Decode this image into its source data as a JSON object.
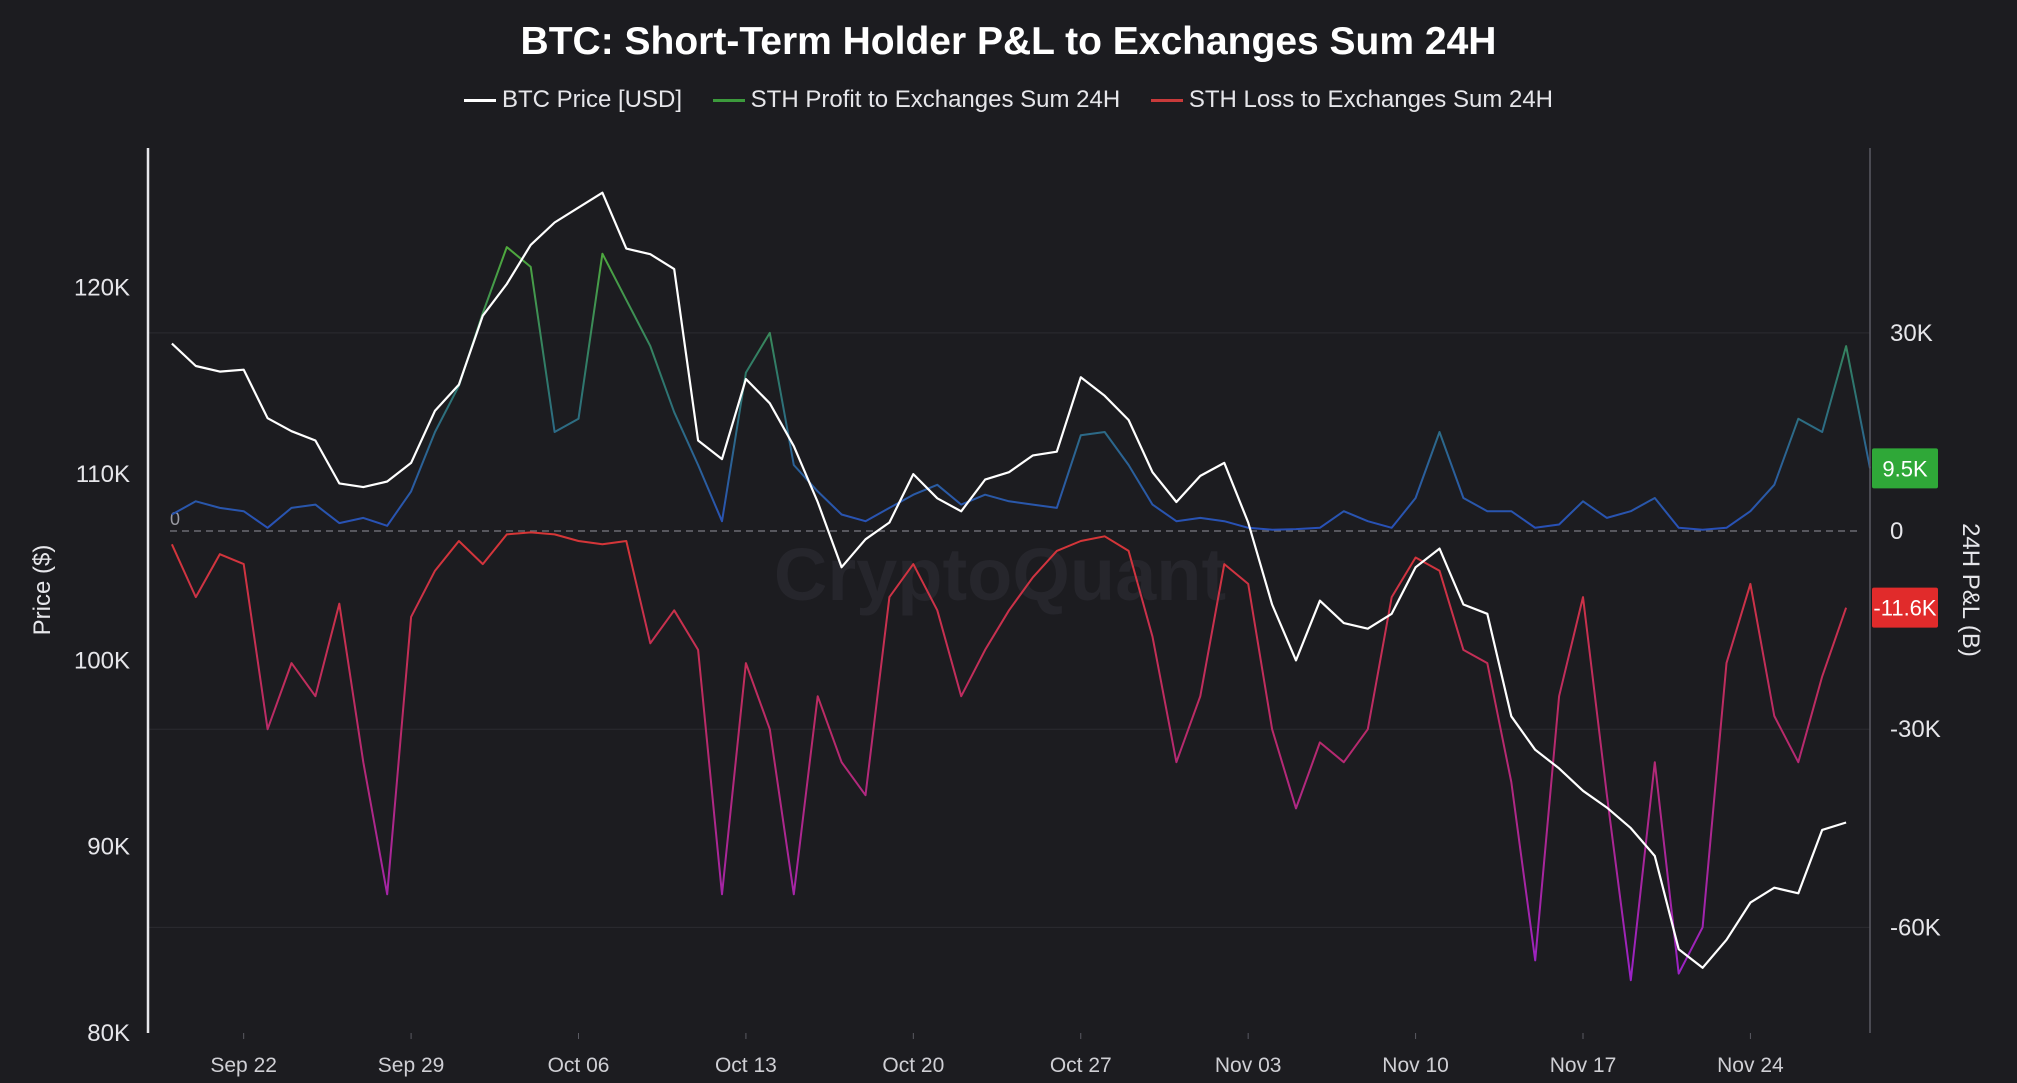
{
  "chart_data": {
    "type": "line",
    "title": "BTC: Short-Term Holder P&L to Exchanges Sum 24H",
    "watermark": "CryptoQuant",
    "ylabel_left": "Price ($)",
    "ylabel_right": "24H P&L (B)",
    "left_axis": {
      "ylim": [
        80000,
        127500
      ],
      "ticks": [
        {
          "v": 80000,
          "label": "80K"
        },
        {
          "v": 90000,
          "label": "90K"
        },
        {
          "v": 100000,
          "label": "100K"
        },
        {
          "v": 110000,
          "label": "110K"
        },
        {
          "v": 120000,
          "label": "120K"
        }
      ]
    },
    "right_axis": {
      "ylim": [
        -76000,
        58000
      ],
      "ticks": [
        {
          "v": 30000,
          "label": "30K"
        },
        {
          "v": 0,
          "label": "0"
        },
        {
          "v": -30000,
          "label": "-30K"
        },
        {
          "v": -60000,
          "label": "-60K"
        }
      ]
    },
    "zero_label": "0",
    "x_axis": {
      "start": "2025-09-18",
      "end": "2025-11-29",
      "ticks": [
        {
          "d": "2025-09-22",
          "label": "Sep 22"
        },
        {
          "d": "2025-09-29",
          "label": "Sep 29"
        },
        {
          "d": "2025-10-06",
          "label": "Oct 06"
        },
        {
          "d": "2025-10-13",
          "label": "Oct 13"
        },
        {
          "d": "2025-10-20",
          "label": "Oct 20"
        },
        {
          "d": "2025-10-27",
          "label": "Oct 27"
        },
        {
          "d": "2025-11-03",
          "label": "Nov 03"
        },
        {
          "d": "2025-11-10",
          "label": "Nov 10"
        },
        {
          "d": "2025-11-17",
          "label": "Nov 17"
        },
        {
          "d": "2025-11-24",
          "label": "Nov 24"
        }
      ]
    },
    "grid": true,
    "legend_position": "top-center",
    "series": [
      {
        "name": "BTC Price [USD]",
        "axis": "left",
        "color": "#ffffff",
        "points": [
          [
            "2025-09-19",
            117000
          ],
          [
            "2025-09-20",
            115800
          ],
          [
            "2025-09-21",
            115500
          ],
          [
            "2025-09-22",
            115600
          ],
          [
            "2025-09-23",
            113000
          ],
          [
            "2025-09-24",
            112300
          ],
          [
            "2025-09-25",
            111800
          ],
          [
            "2025-09-26",
            109500
          ],
          [
            "2025-09-27",
            109300
          ],
          [
            "2025-09-28",
            109600
          ],
          [
            "2025-09-29",
            110600
          ],
          [
            "2025-09-30",
            113400
          ],
          [
            "2025-10-01",
            114800
          ],
          [
            "2025-10-02",
            118500
          ],
          [
            "2025-10-03",
            120200
          ],
          [
            "2025-10-04",
            122300
          ],
          [
            "2025-10-05",
            123500
          ],
          [
            "2025-10-06",
            124300
          ],
          [
            "2025-10-07",
            125100
          ],
          [
            "2025-10-08",
            122100
          ],
          [
            "2025-10-09",
            121800
          ],
          [
            "2025-10-10",
            121000
          ],
          [
            "2025-10-11",
            111800
          ],
          [
            "2025-10-12",
            110800
          ],
          [
            "2025-10-13",
            115100
          ],
          [
            "2025-10-14",
            113800
          ],
          [
            "2025-10-15",
            111500
          ],
          [
            "2025-10-16",
            108500
          ],
          [
            "2025-10-17",
            105000
          ],
          [
            "2025-10-18",
            106500
          ],
          [
            "2025-10-19",
            107400
          ],
          [
            "2025-10-20",
            110000
          ],
          [
            "2025-10-21",
            108700
          ],
          [
            "2025-10-22",
            108000
          ],
          [
            "2025-10-23",
            109700
          ],
          [
            "2025-10-24",
            110100
          ],
          [
            "2025-10-25",
            111000
          ],
          [
            "2025-10-26",
            111200
          ],
          [
            "2025-10-27",
            115200
          ],
          [
            "2025-10-28",
            114200
          ],
          [
            "2025-10-29",
            112900
          ],
          [
            "2025-10-30",
            110100
          ],
          [
            "2025-10-31",
            108500
          ],
          [
            "2025-11-01",
            109900
          ],
          [
            "2025-11-02",
            110600
          ],
          [
            "2025-11-03",
            107400
          ],
          [
            "2025-11-04",
            103000
          ],
          [
            "2025-11-05",
            100000
          ],
          [
            "2025-11-06",
            103200
          ],
          [
            "2025-11-07",
            102000
          ],
          [
            "2025-11-08",
            101700
          ],
          [
            "2025-11-09",
            102500
          ],
          [
            "2025-11-10",
            105000
          ],
          [
            "2025-11-11",
            106000
          ],
          [
            "2025-11-12",
            103000
          ],
          [
            "2025-11-13",
            102500
          ],
          [
            "2025-11-14",
            97000
          ],
          [
            "2025-11-15",
            95200
          ],
          [
            "2025-11-16",
            94200
          ],
          [
            "2025-11-17",
            93000
          ],
          [
            "2025-11-18",
            92100
          ],
          [
            "2025-11-19",
            91000
          ],
          [
            "2025-11-20",
            89500
          ],
          [
            "2025-11-21",
            84500
          ],
          [
            "2025-11-22",
            83500
          ],
          [
            "2025-11-23",
            85000
          ],
          [
            "2025-11-24",
            87000
          ],
          [
            "2025-11-25",
            87800
          ],
          [
            "2025-11-26",
            87500
          ],
          [
            "2025-11-27",
            90900
          ],
          [
            "2025-11-28",
            91300
          ]
        ]
      },
      {
        "name": "STH Profit to Exchanges Sum 24H",
        "axis": "right",
        "color": "#4fae4f",
        "points": [
          [
            "2025-09-19",
            2500
          ],
          [
            "2025-09-20",
            4500
          ],
          [
            "2025-09-21",
            3500
          ],
          [
            "2025-09-22",
            3000
          ],
          [
            "2025-09-23",
            500
          ],
          [
            "2025-09-24",
            3500
          ],
          [
            "2025-09-25",
            4000
          ],
          [
            "2025-09-26",
            1200
          ],
          [
            "2025-09-27",
            2000
          ],
          [
            "2025-09-28",
            800
          ],
          [
            "2025-09-29",
            6000
          ],
          [
            "2025-09-30",
            15000
          ],
          [
            "2025-10-01",
            22000
          ],
          [
            "2025-10-02",
            33000
          ],
          [
            "2025-10-03",
            43000
          ],
          [
            "2025-10-04",
            40000
          ],
          [
            "2025-10-05",
            15000
          ],
          [
            "2025-10-06",
            17000
          ],
          [
            "2025-10-07",
            42000
          ],
          [
            "2025-10-08",
            35000
          ],
          [
            "2025-10-09",
            28000
          ],
          [
            "2025-10-10",
            18000
          ],
          [
            "2025-10-11",
            10000
          ],
          [
            "2025-10-12",
            1500
          ],
          [
            "2025-10-13",
            24000
          ],
          [
            "2025-10-14",
            30000
          ],
          [
            "2025-10-15",
            10000
          ],
          [
            "2025-10-16",
            6000
          ],
          [
            "2025-10-17",
            2500
          ],
          [
            "2025-10-18",
            1500
          ],
          [
            "2025-10-19",
            3500
          ],
          [
            "2025-10-20",
            5500
          ],
          [
            "2025-10-21",
            7000
          ],
          [
            "2025-10-22",
            4000
          ],
          [
            "2025-10-23",
            5500
          ],
          [
            "2025-10-24",
            4500
          ],
          [
            "2025-10-25",
            4000
          ],
          [
            "2025-10-26",
            3500
          ],
          [
            "2025-10-27",
            14500
          ],
          [
            "2025-10-28",
            15000
          ],
          [
            "2025-10-29",
            10000
          ],
          [
            "2025-10-30",
            4000
          ],
          [
            "2025-10-31",
            1500
          ],
          [
            "2025-11-01",
            2000
          ],
          [
            "2025-11-02",
            1500
          ],
          [
            "2025-11-03",
            500
          ],
          [
            "2025-11-04",
            200
          ],
          [
            "2025-11-05",
            300
          ],
          [
            "2025-11-06",
            500
          ],
          [
            "2025-11-07",
            3000
          ],
          [
            "2025-11-08",
            1500
          ],
          [
            "2025-11-09",
            500
          ],
          [
            "2025-11-10",
            5000
          ],
          [
            "2025-11-11",
            15000
          ],
          [
            "2025-11-12",
            5000
          ],
          [
            "2025-11-13",
            3000
          ],
          [
            "2025-11-14",
            3000
          ],
          [
            "2025-11-15",
            500
          ],
          [
            "2025-11-16",
            1000
          ],
          [
            "2025-11-17",
            4500
          ],
          [
            "2025-11-18",
            2000
          ],
          [
            "2025-11-19",
            3000
          ],
          [
            "2025-11-20",
            5000
          ],
          [
            "2025-11-21",
            500
          ],
          [
            "2025-11-22",
            200
          ],
          [
            "2025-11-23",
            500
          ],
          [
            "2025-11-24",
            3000
          ],
          [
            "2025-11-25",
            7000
          ],
          [
            "2025-11-26",
            17000
          ],
          [
            "2025-11-27",
            15000
          ],
          [
            "2025-11-28",
            28000
          ],
          [
            "2025-11-29",
            9500
          ]
        ]
      },
      {
        "name": "STH Loss to Exchanges Sum 24H",
        "axis": "right",
        "color": "#d23a3a",
        "points": [
          [
            "2025-09-19",
            -2000
          ],
          [
            "2025-09-20",
            -10000
          ],
          [
            "2025-09-21",
            -3500
          ],
          [
            "2025-09-22",
            -5000
          ],
          [
            "2025-09-23",
            -30000
          ],
          [
            "2025-09-24",
            -20000
          ],
          [
            "2025-09-25",
            -25000
          ],
          [
            "2025-09-26",
            -11000
          ],
          [
            "2025-09-27",
            -35000
          ],
          [
            "2025-09-28",
            -55000
          ],
          [
            "2025-09-29",
            -13000
          ],
          [
            "2025-09-30",
            -6000
          ],
          [
            "2025-10-01",
            -1500
          ],
          [
            "2025-10-02",
            -5000
          ],
          [
            "2025-10-03",
            -500
          ],
          [
            "2025-10-04",
            -200
          ],
          [
            "2025-10-05",
            -500
          ],
          [
            "2025-10-06",
            -1500
          ],
          [
            "2025-10-07",
            -2000
          ],
          [
            "2025-10-08",
            -1500
          ],
          [
            "2025-10-09",
            -17000
          ],
          [
            "2025-10-10",
            -12000
          ],
          [
            "2025-10-11",
            -18000
          ],
          [
            "2025-10-12",
            -55000
          ],
          [
            "2025-10-13",
            -20000
          ],
          [
            "2025-10-14",
            -30000
          ],
          [
            "2025-10-15",
            -55000
          ],
          [
            "2025-10-16",
            -25000
          ],
          [
            "2025-10-17",
            -35000
          ],
          [
            "2025-10-18",
            -40000
          ],
          [
            "2025-10-19",
            -10000
          ],
          [
            "2025-10-20",
            -5000
          ],
          [
            "2025-10-21",
            -12000
          ],
          [
            "2025-10-22",
            -25000
          ],
          [
            "2025-10-23",
            -18000
          ],
          [
            "2025-10-24",
            -12000
          ],
          [
            "2025-10-25",
            -7000
          ],
          [
            "2025-10-26",
            -3000
          ],
          [
            "2025-10-27",
            -1500
          ],
          [
            "2025-10-28",
            -800
          ],
          [
            "2025-10-29",
            -3000
          ],
          [
            "2025-10-30",
            -16000
          ],
          [
            "2025-10-31",
            -35000
          ],
          [
            "2025-11-01",
            -25000
          ],
          [
            "2025-11-02",
            -5000
          ],
          [
            "2025-11-03",
            -8000
          ],
          [
            "2025-11-04",
            -30000
          ],
          [
            "2025-11-05",
            -42000
          ],
          [
            "2025-11-06",
            -32000
          ],
          [
            "2025-11-07",
            -35000
          ],
          [
            "2025-11-08",
            -30000
          ],
          [
            "2025-11-09",
            -10000
          ],
          [
            "2025-11-10",
            -4000
          ],
          [
            "2025-11-11",
            -6000
          ],
          [
            "2025-11-12",
            -18000
          ],
          [
            "2025-11-13",
            -20000
          ],
          [
            "2025-11-14",
            -38000
          ],
          [
            "2025-11-15",
            -65000
          ],
          [
            "2025-11-16",
            -25000
          ],
          [
            "2025-11-17",
            -10000
          ],
          [
            "2025-11-18",
            -40000
          ],
          [
            "2025-11-19",
            -68000
          ],
          [
            "2025-11-20",
            -35000
          ],
          [
            "2025-11-21",
            -67000
          ],
          [
            "2025-11-22",
            -60000
          ],
          [
            "2025-11-23",
            -20000
          ],
          [
            "2025-11-24",
            -8000
          ],
          [
            "2025-11-25",
            -28000
          ],
          [
            "2025-11-26",
            -35000
          ],
          [
            "2025-11-27",
            -22000
          ],
          [
            "2025-11-28",
            -11600
          ]
        ]
      }
    ],
    "end_badges": [
      {
        "series": "STH Profit to Exchanges Sum 24H",
        "label": "9.5K",
        "value": 9500,
        "color": "#2fa838"
      },
      {
        "series": "STH Loss to Exchanges Sum 24H",
        "label": "-11.6K",
        "value": -11600,
        "color": "#e12b2b"
      }
    ]
  }
}
